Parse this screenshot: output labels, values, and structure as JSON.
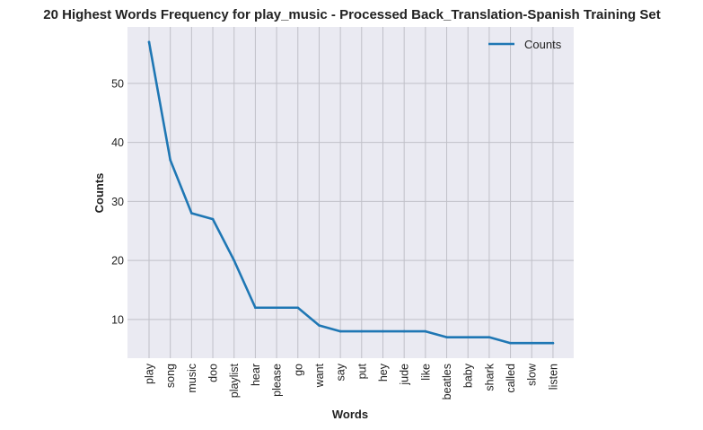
{
  "chart_data": {
    "type": "line",
    "title": "20 Highest Words Frequency for play_music - Processed Back_Translation-Spanish Training Set",
    "xlabel": "Words",
    "ylabel": "Counts",
    "categories": [
      "play",
      "song",
      "music",
      "doo",
      "playlist",
      "hear",
      "please",
      "go",
      "want",
      "say",
      "put",
      "hey",
      "jude",
      "like",
      "beatles",
      "baby",
      "shark",
      "called",
      "slow",
      "listen"
    ],
    "series": [
      {
        "name": "Counts",
        "values": [
          57,
          37,
          28,
          27,
          20,
          12,
          12,
          12,
          9,
          8,
          8,
          8,
          8,
          8,
          7,
          7,
          7,
          6,
          6,
          6
        ]
      }
    ],
    "ylim": [
      3.45,
      59.55
    ],
    "yticks": [
      10,
      20,
      30,
      40,
      50
    ],
    "grid": true,
    "legend_position": "top-right",
    "colors": {
      "line": "#1f77b4",
      "background": "#eaeaf2",
      "grid": "#c0c0c8"
    }
  }
}
